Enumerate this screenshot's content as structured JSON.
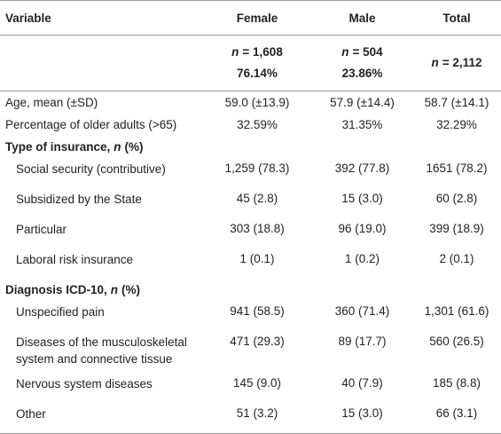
{
  "table": {
    "columns": [
      "Variable",
      "Female",
      "Male",
      "Total"
    ],
    "counts": [
      {
        "symbol": "n",
        "text": "= 1,608",
        "share": "76.14%"
      },
      {
        "symbol": "n",
        "text": "= 504",
        "share": "23.86%"
      },
      {
        "symbol": "n",
        "text": "= 2,112"
      }
    ],
    "overall": [
      {
        "label": "Age, mean (±SD)",
        "cells": [
          "59.0 (±13.9)",
          "57.9 (±14.4)",
          "58.7 (±14.1)"
        ]
      },
      {
        "label": "Percentage of older adults (>65)",
        "cells": [
          "32.59%",
          "31.35%",
          "32.29%"
        ]
      }
    ],
    "groups": [
      {
        "heading": {
          "text": "Type of insurance,",
          "symbol": "n",
          "unit": "(%)"
        },
        "rows": [
          {
            "label": "Social security (contributive)",
            "cells": [
              "1,259 (78.3)",
              "392 (77.8)",
              "1651 (78.2)"
            ]
          },
          {
            "label": "Subsidized by the State",
            "cells": [
              "45 (2.8)",
              "15 (3.0)",
              "60 (2.8)"
            ]
          },
          {
            "label": "Particular",
            "cells": [
              "303 (18.8)",
              "96 (19.0)",
              "399 (18.9)"
            ]
          },
          {
            "label": "Laboral risk insurance",
            "cells": [
              "1 (0.1)",
              "1 (0.2)",
              "2 (0.1)"
            ]
          }
        ]
      },
      {
        "heading": {
          "text": "Diagnosis ICD-10,",
          "symbol": "n",
          "unit": "(%)"
        },
        "rows": [
          {
            "label": "Unspecified pain",
            "cells": [
              "941 (58.5)",
              "360 (71.4)",
              "1,301 (61.6)"
            ]
          },
          {
            "label": "Diseases of the musculoskeletal system and connective tissue",
            "cells": [
              "471 (29.3)",
              "89 (17.7)",
              "560 (26.5)"
            ]
          },
          {
            "label": "Nervous system diseases",
            "cells": [
              "145 (9.0)",
              "40 (7.9)",
              "185 (8.8)"
            ]
          },
          {
            "label": "Other",
            "cells": [
              "51 (3.2)",
              "15 (3.0)",
              "66 (3.1)"
            ]
          }
        ]
      }
    ]
  }
}
